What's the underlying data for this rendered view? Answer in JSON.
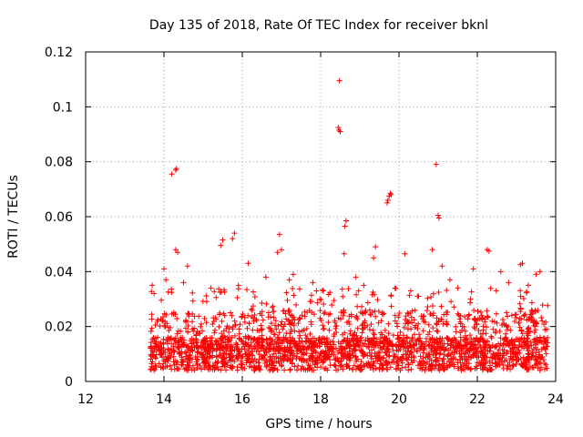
{
  "chart_data": {
    "type": "scatter",
    "title": "Day 135 of 2018, Rate Of TEC Index for receiver bknl",
    "xlabel": "GPS time / hours",
    "ylabel": "ROTI / TECUs",
    "xlim": [
      12,
      24
    ],
    "ylim": [
      0,
      0.12
    ],
    "x_ticks": [
      "12",
      "14",
      "16",
      "18",
      "20",
      "22",
      "24"
    ],
    "y_ticks": [
      "0",
      "0.02",
      "0.04",
      "0.06",
      "0.08",
      "0.1",
      "0.12"
    ],
    "grid": true,
    "marker": "+",
    "color": "#ff0000",
    "series": [
      {
        "name": "ROTI",
        "points": [
          [
            14.2,
            0.0755
          ],
          [
            14.3,
            0.077
          ],
          [
            14.32,
            0.0775
          ],
          [
            18.48,
            0.1095
          ],
          [
            18.45,
            0.0925
          ],
          [
            18.47,
            0.0915
          ],
          [
            18.5,
            0.091
          ],
          [
            20.95,
            0.079
          ],
          [
            21.0,
            0.0605
          ],
          [
            21.02,
            0.0595
          ],
          [
            19.7,
            0.065
          ],
          [
            19.72,
            0.066
          ],
          [
            19.75,
            0.0675
          ],
          [
            19.78,
            0.0685
          ],
          [
            19.8,
            0.068
          ],
          [
            18.65,
            0.0585
          ],
          [
            18.62,
            0.0565
          ],
          [
            18.6,
            0.0465
          ],
          [
            16.95,
            0.0535
          ],
          [
            15.8,
            0.054
          ],
          [
            15.75,
            0.052
          ],
          [
            15.5,
            0.0515
          ],
          [
            15.45,
            0.0495
          ],
          [
            14.3,
            0.048
          ],
          [
            14.35,
            0.047
          ],
          [
            19.4,
            0.049
          ],
          [
            20.15,
            0.0465
          ],
          [
            20.85,
            0.048
          ],
          [
            22.25,
            0.048
          ],
          [
            22.3,
            0.0475
          ],
          [
            23.1,
            0.0425
          ],
          [
            23.15,
            0.043
          ],
          [
            16.15,
            0.043
          ],
          [
            17.0,
            0.048
          ],
          [
            16.9,
            0.047
          ],
          [
            19.35,
            0.045
          ],
          [
            14.6,
            0.042
          ],
          [
            14.0,
            0.041
          ],
          [
            21.1,
            0.042
          ],
          [
            21.9,
            0.041
          ],
          [
            22.6,
            0.04
          ],
          [
            23.5,
            0.039
          ],
          [
            23.6,
            0.04
          ],
          [
            13.7,
            0.035
          ],
          [
            13.75,
            0.032
          ],
          [
            14.05,
            0.037
          ],
          [
            14.5,
            0.036
          ],
          [
            15.2,
            0.034
          ],
          [
            15.9,
            0.035
          ],
          [
            16.6,
            0.038
          ],
          [
            17.2,
            0.037
          ],
          [
            17.3,
            0.039
          ],
          [
            17.8,
            0.036
          ],
          [
            18.9,
            0.038
          ],
          [
            19.1,
            0.035
          ],
          [
            19.9,
            0.034
          ],
          [
            20.3,
            0.033
          ],
          [
            20.5,
            0.031
          ],
          [
            21.3,
            0.037
          ],
          [
            21.5,
            0.034
          ],
          [
            22.8,
            0.036
          ],
          [
            23.3,
            0.035
          ]
        ]
      }
    ]
  }
}
